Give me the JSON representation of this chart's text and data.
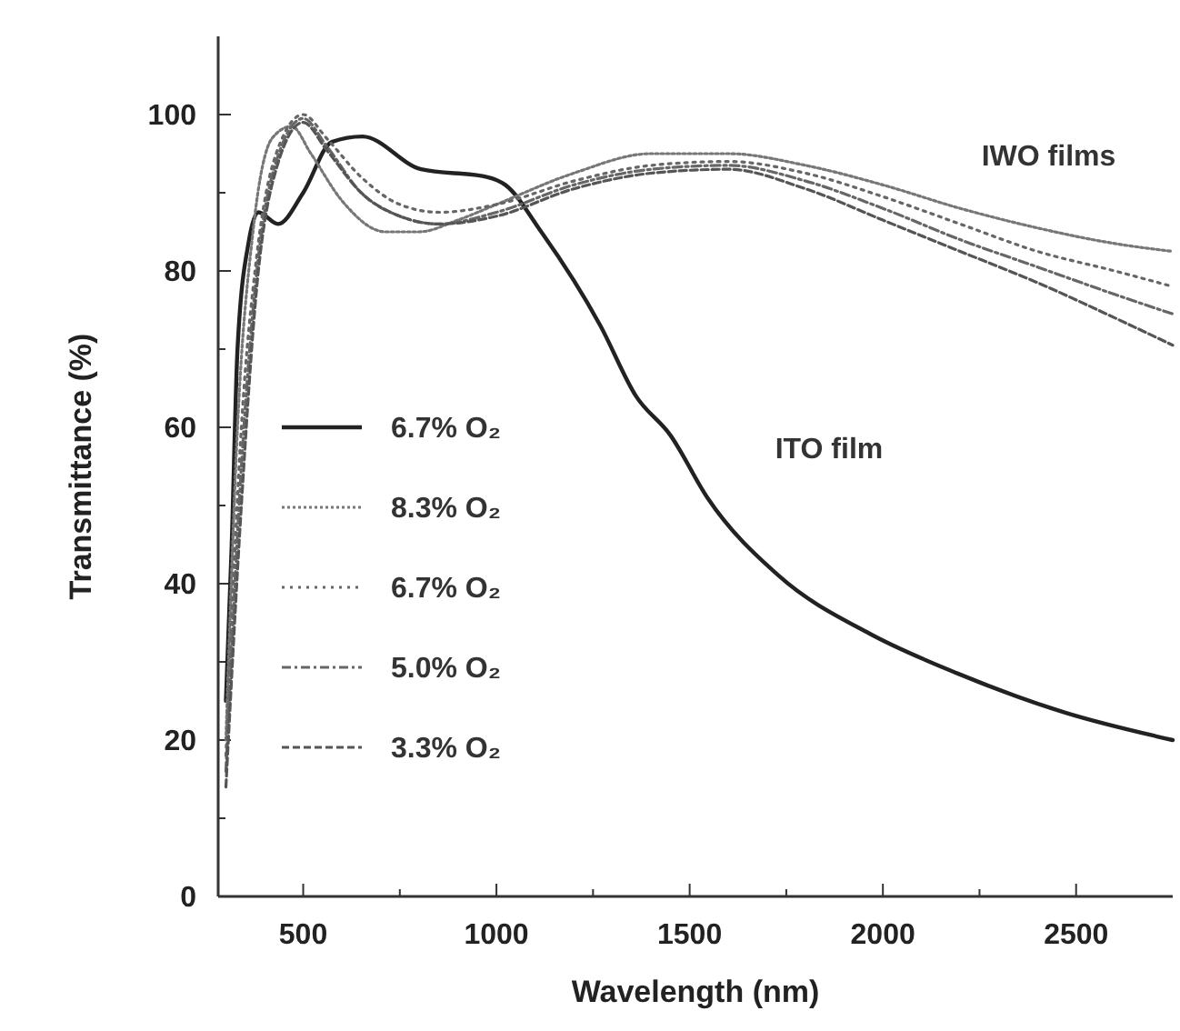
{
  "chart_data": {
    "type": "line",
    "xlabel": "Wavelength (nm)",
    "ylabel": "Transmittance (%)",
    "xlim": [
      280,
      2750
    ],
    "xticks": [
      500,
      {
        "value": 750,
        "label": null
      },
      1000,
      {
        "value": 1250,
        "label": null
      },
      1500,
      {
        "value": 1750,
        "label": null
      },
      2000,
      {
        "value": 2250,
        "label": null
      },
      2500
    ],
    "ylim": [
      0,
      110
    ],
    "yticks": [
      0,
      {
        "value": 10,
        "label": null
      },
      20,
      {
        "value": 30,
        "label": null
      },
      40,
      {
        "value": 50,
        "label": null
      },
      60,
      {
        "value": 70,
        "label": null
      },
      80,
      {
        "value": 90,
        "label": null
      },
      100
    ],
    "grid": false,
    "legend": "left",
    "marker": "none",
    "series": [
      {
        "name": "6.7% O₂",
        "color": "#222222",
        "line_style": "solid",
        "x": [
          300,
          315,
          330,
          360,
          384,
          435,
          500,
          574,
          653,
          805,
          977,
          1023,
          1116,
          1269,
          1361,
          1450,
          1546,
          1731,
          1966,
          2194,
          2472,
          2750
        ],
        "values": [
          25,
          45,
          70,
          84,
          87.5,
          86,
          90,
          96.5,
          97.2,
          93,
          92,
          91,
          85,
          73,
          64,
          59,
          51,
          41,
          33.6,
          28.5,
          23.5,
          20
        ]
      },
      {
        "name": "8.3% O₂",
        "color": "#777777",
        "line_style": "dotted",
        "x": [
          300,
          330,
          370,
          420,
          470,
          520,
          600,
          713,
          800,
          900,
          1000,
          1200,
          1400,
          1600,
          1800,
          2000,
          2200,
          2400,
          2600,
          2750
        ],
        "values": [
          20,
          60,
          85,
          97,
          98.5,
          95,
          89,
          85,
          85,
          86.5,
          88.5,
          92.5,
          95,
          95,
          93.5,
          91,
          88,
          85.5,
          83.5,
          82.5
        ]
      },
      {
        "name": "6.7% O₂",
        "color": "#666666",
        "line_style": "dotted",
        "x": [
          300,
          340,
          380,
          430,
          500,
          560,
          650,
          750,
          852,
          1000,
          1200,
          1400,
          1600,
          1800,
          2000,
          2200,
          2400,
          2600,
          2750
        ],
        "values": [
          18,
          60,
          82,
          95,
          100,
          97,
          92,
          88.5,
          87.5,
          88.5,
          91.5,
          93.5,
          94,
          92.5,
          89.5,
          86,
          82.5,
          80,
          78
        ]
      },
      {
        "name": "5.0% O₂",
        "color": "#666666",
        "line_style": "dashed",
        "x": [
          300,
          340,
          380,
          430,
          500,
          560,
          650,
          750,
          852,
          1000,
          1200,
          1400,
          1600,
          1800,
          2000,
          2200,
          2400,
          2600,
          2750
        ],
        "values": [
          16,
          55,
          80,
          94,
          99.5,
          96,
          90,
          87,
          86,
          87.5,
          91,
          93,
          93.5,
          91.5,
          88,
          84,
          80.5,
          77,
          74.5
        ]
      },
      {
        "name": "3.3% O₂",
        "color": "#555555",
        "line_style": "dashed",
        "x": [
          300,
          340,
          380,
          430,
          500,
          560,
          650,
          750,
          852,
          1000,
          1200,
          1400,
          1600,
          1800,
          2000,
          2200,
          2400,
          2600,
          2750
        ],
        "values": [
          14,
          50,
          78,
          93,
          99,
          95.5,
          90,
          87,
          86,
          87,
          90.5,
          92.5,
          93,
          90.5,
          86.5,
          82.5,
          78.5,
          74,
          70.5
        ]
      }
    ],
    "annotations": [
      "IWO films",
      "ITO film"
    ]
  }
}
